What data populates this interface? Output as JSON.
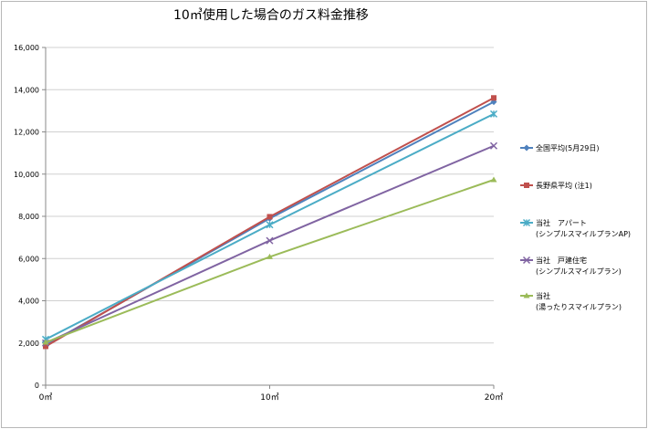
{
  "chart_data": {
    "type": "line",
    "title": "10㎥使用した場合のガス料金推移",
    "categories": [
      "0㎥",
      "10㎥",
      "20㎥"
    ],
    "ylim": [
      0,
      16000
    ],
    "ytick_step": 2000,
    "grid": "horizontal",
    "legend_position": "right",
    "series": [
      {
        "name": "全国平均(5月29日)",
        "lines": [
          "全国平均(5月29日)"
        ],
        "color": "#4f81bd",
        "marker": "diamond",
        "values": [
          1880,
          7900,
          13420
        ]
      },
      {
        "name": "長野県平均 (注1)",
        "lines": [
          "長野県平均 (注1)"
        ],
        "color": "#c0504d",
        "marker": "square",
        "values": [
          1840,
          7980,
          13610
        ]
      },
      {
        "name": "当社　アパート (シンプルスマイルプランAP)",
        "lines": [
          "当社　アパート",
          "(シンプルスマイルプランAP)"
        ],
        "color": "#4bacc6",
        "marker": "asterisk",
        "values": [
          2170,
          7600,
          12850
        ]
      },
      {
        "name": "当社　戸建住宅 (シンプルスマイルプラン)",
        "lines": [
          "当社　戸建住宅",
          "(シンプルスマイルプラン)"
        ],
        "color": "#8064a2",
        "marker": "x",
        "values": [
          2000,
          6850,
          11340
        ]
      },
      {
        "name": "当社 (湯ったりスマイルプラン)",
        "lines": [
          "当社",
          "(湯ったりスマイルプラン)"
        ],
        "color": "#9bbb59",
        "marker": "triangle",
        "values": [
          2030,
          6080,
          9730
        ]
      }
    ]
  }
}
